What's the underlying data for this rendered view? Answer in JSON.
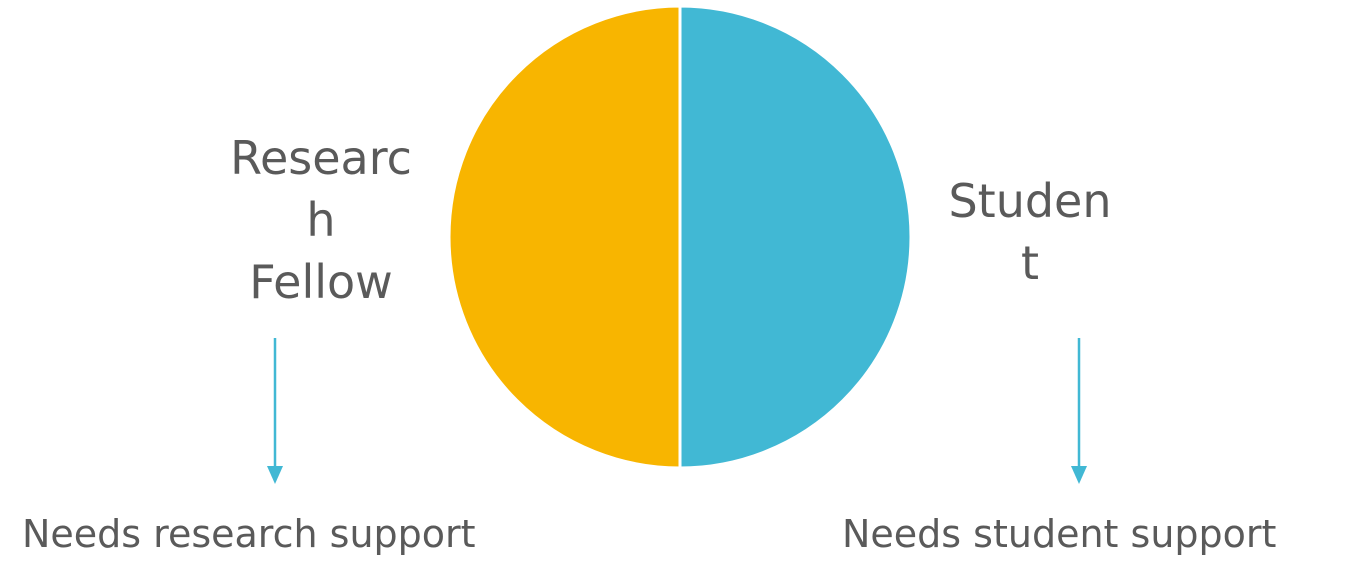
{
  "chart_data": {
    "type": "pie",
    "slices": [
      {
        "label": "Research Fellow",
        "value": 50,
        "color": "#F8B500"
      },
      {
        "label": "Student",
        "value": 50,
        "color": "#41B8D4"
      }
    ]
  },
  "labels": {
    "research": "Researc\nh\nFellow",
    "student": "Studen\nt"
  },
  "notes": {
    "research": "Needs research support",
    "student": "Needs student support"
  },
  "colors": {
    "arrow": "#41B8D4",
    "text": "#5a5a5a"
  }
}
